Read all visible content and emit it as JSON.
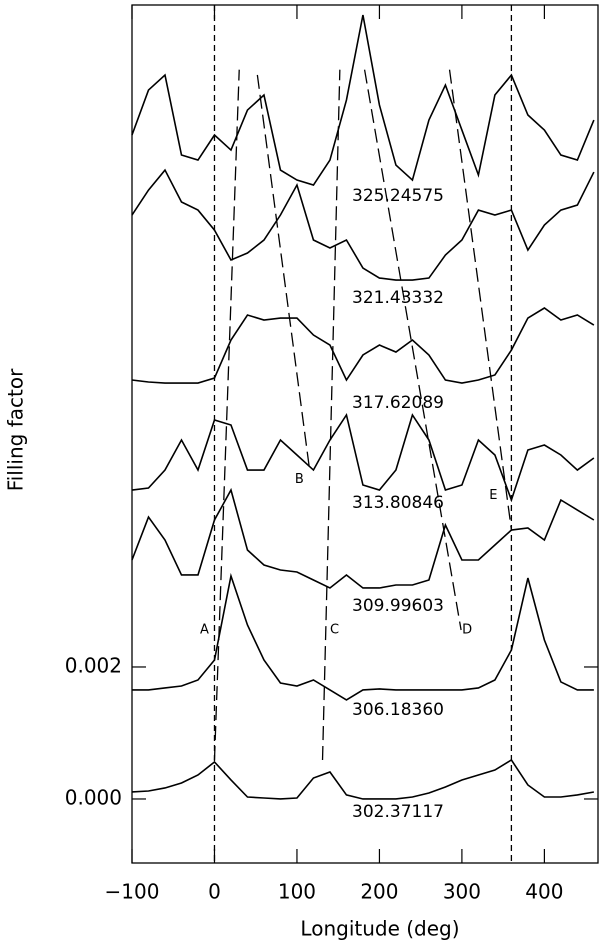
{
  "chart_data": {
    "type": "line",
    "xlabel": "Longitude (deg)",
    "ylabel": "Filling factor",
    "xlim": [
      -100,
      465
    ],
    "ylim": [
      -0.00097,
      0.01203
    ],
    "xticks": [
      {
        "value": -100,
        "label": "−100"
      },
      0,
      100,
      200,
      300,
      400
    ],
    "yticks": [
      {
        "value": 0,
        "label": "0.000"
      },
      {
        "value": 0.002,
        "label": "0.002"
      }
    ],
    "color": "#000000",
    "x": [
      -100,
      -80,
      -60,
      -40,
      -20,
      0,
      20,
      40,
      60,
      80,
      100,
      120,
      140,
      160,
      180,
      200,
      220,
      240,
      260,
      280,
      300,
      320,
      340,
      360,
      380,
      400,
      420,
      440,
      460
    ],
    "series": [
      {
        "name": "302.37117",
        "values": [
          0.000106,
          0.000121,
          0.000167,
          0.000242,
          0.000364,
          0.000561,
          0.000288,
          3e-05,
          1.5e-05,
          0,
          1.5e-05,
          0.000318,
          0.000409,
          6.1e-05,
          0,
          0,
          0,
          3e-05,
          9.1e-05,
          0.000182,
          0.000288,
          0.000364,
          0.000439,
          0.000591,
          0.000212,
          3e-05,
          3e-05,
          6.1e-05,
          0.000106
        ]
      },
      {
        "name": "306.18360",
        "values": [
          0.001652,
          0.001652,
          0.001682,
          0.001712,
          0.001803,
          0.002106,
          0.003379,
          0.002636,
          0.002106,
          0.001757,
          0.001712,
          0.001803,
          0.001652,
          0.0015,
          0.001652,
          0.001667,
          0.001652,
          0.001652,
          0.001652,
          0.001652,
          0.001652,
          0.001682,
          0.001803,
          0.002257,
          0.003348,
          0.002409,
          0.001773,
          0.001652,
          0.001652
        ]
      },
      {
        "name": "309.99603",
        "values": [
          0.003621,
          0.004272,
          0.003924,
          0.003394,
          0.003394,
          0.004227,
          0.004681,
          0.003772,
          0.003545,
          0.003469,
          0.003439,
          0.003318,
          0.003197,
          0.003394,
          0.003197,
          0.003197,
          0.003242,
          0.003242,
          0.003318,
          0.004151,
          0.003621,
          0.003621,
          0.003848,
          0.004075,
          0.004106,
          0.003924,
          0.00453,
          0.004378,
          0.004227
        ]
      },
      {
        "name": "313.80846",
        "values": [
          0.004681,
          0.004712,
          0.004984,
          0.005439,
          0.004984,
          0.005742,
          0.005666,
          0.004984,
          0.004984,
          0.005439,
          0.005212,
          0.004984,
          0.005439,
          0.005818,
          0.004757,
          0.004681,
          0.004984,
          0.005818,
          0.005439,
          0.004681,
          0.004757,
          0.005439,
          0.005212,
          0.00453,
          0.005287,
          0.005363,
          0.005212,
          0.004984,
          0.005166
        ]
      },
      {
        "name": "317.62089",
        "values": [
          0.006348,
          0.006318,
          0.006302,
          0.006302,
          0.006302,
          0.006378,
          0.006954,
          0.007333,
          0.007257,
          0.007287,
          0.007287,
          0.00703,
          0.006878,
          0.006348,
          0.006727,
          0.006878,
          0.006772,
          0.006954,
          0.006727,
          0.006348,
          0.006302,
          0.006348,
          0.006424,
          0.006802,
          0.007287,
          0.007439,
          0.007257,
          0.007333,
          0.007181
        ]
      },
      {
        "name": "321.43332",
        "values": [
          0.008848,
          0.009226,
          0.009529,
          0.009045,
          0.008923,
          0.00862,
          0.008166,
          0.008272,
          0.008469,
          0.008848,
          0.009302,
          0.008469,
          0.008348,
          0.008469,
          0.008045,
          0.007893,
          0.007863,
          0.007863,
          0.007893,
          0.008242,
          0.008469,
          0.008923,
          0.008848,
          0.008923,
          0.008317,
          0.008696,
          0.008923,
          0.008999,
          0.009499
        ]
      },
      {
        "name": "325.24575",
        "values": [
          0.01006,
          0.010741,
          0.010969,
          0.009757,
          0.009681,
          0.01006,
          0.009832,
          0.010438,
          0.010666,
          0.009529,
          0.009378,
          0.009302,
          0.009681,
          0.01059,
          0.011878,
          0.010514,
          0.009605,
          0.009378,
          0.010287,
          0.010817,
          0.010135,
          0.009454,
          0.010666,
          0.010969,
          0.010363,
          0.010135,
          0.009757,
          0.009681,
          0.010287
        ]
      }
    ],
    "vlines": [
      0,
      360
    ],
    "tracks": [
      {
        "label": "A",
        "x": [
          0,
          30
        ],
        "y": [
          0.00059,
          0.01105
        ]
      },
      {
        "label": "B",
        "x": [
          52,
          115
        ],
        "y": [
          0.01097,
          0.00502
        ]
      },
      {
        "label": "C",
        "x": [
          131,
          152
        ],
        "y": [
          0.00059,
          0.01105
        ]
      },
      {
        "label": "D",
        "x": [
          182,
          299
        ],
        "y": [
          0.01105,
          0.00256
        ]
      },
      {
        "label": "E",
        "x": [
          285,
          360
        ],
        "y": [
          0.01105,
          0.00408
        ]
      }
    ]
  }
}
